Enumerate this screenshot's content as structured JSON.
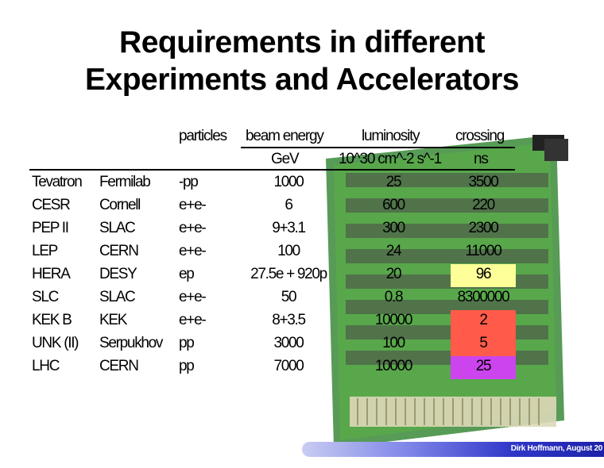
{
  "title_line1": "Requirements in different",
  "title_line2": "Experiments and Accelerators",
  "headers": {
    "particles": "particles",
    "beam_energy": "beam energy",
    "luminosity": "luminosity",
    "crossing": "crossing",
    "beam_energy_unit": "GeV",
    "luminosity_unit": "10^30 cm^-2 s^-1",
    "crossing_unit": "ns"
  },
  "rows": [
    {
      "experiment": "Tevatron",
      "lab": "Fermilab",
      "particles": "-pp",
      "energy": "1000",
      "luminosity": "25",
      "crossing": "3500",
      "highlight": ""
    },
    {
      "experiment": "CESR",
      "lab": "Cornell",
      "particles": "e+e-",
      "energy": "6",
      "luminosity": "600",
      "crossing": "220",
      "highlight": ""
    },
    {
      "experiment": "PEP II",
      "lab": "SLAC",
      "particles": "e+e-",
      "energy": "9+3.1",
      "luminosity": "300",
      "crossing": "2300",
      "highlight": ""
    },
    {
      "experiment": "LEP",
      "lab": "CERN",
      "particles": "e+e-",
      "energy": "100",
      "luminosity": "24",
      "crossing": "11000",
      "highlight": ""
    },
    {
      "experiment": "HERA",
      "lab": "DESY",
      "particles": "ep",
      "energy": "27.5e + 920p",
      "luminosity": "20",
      "crossing": "96",
      "highlight": "#ffff99"
    },
    {
      "experiment": "SLC",
      "lab": "SLAC",
      "particles": "e+e-",
      "energy": "50",
      "luminosity": "0.8",
      "crossing": "8300000",
      "highlight": ""
    },
    {
      "experiment": "KEK B",
      "lab": "KEK",
      "particles": "e+e-",
      "energy": "8+3.5",
      "luminosity": "10000",
      "crossing": "2",
      "highlight": "#ff5a4a"
    },
    {
      "experiment": "UNK (II)",
      "lab": "Serpukhov",
      "particles": "pp",
      "energy": "3000",
      "luminosity": "100",
      "crossing": "5",
      "highlight": "#ff5a4a"
    },
    {
      "experiment": "LHC",
      "lab": "CERN",
      "particles": "pp",
      "energy": "7000",
      "luminosity": "10000",
      "crossing": "25",
      "highlight": "#cc44ee"
    }
  ],
  "footer": "Dirk Hoffmann, August 20"
}
